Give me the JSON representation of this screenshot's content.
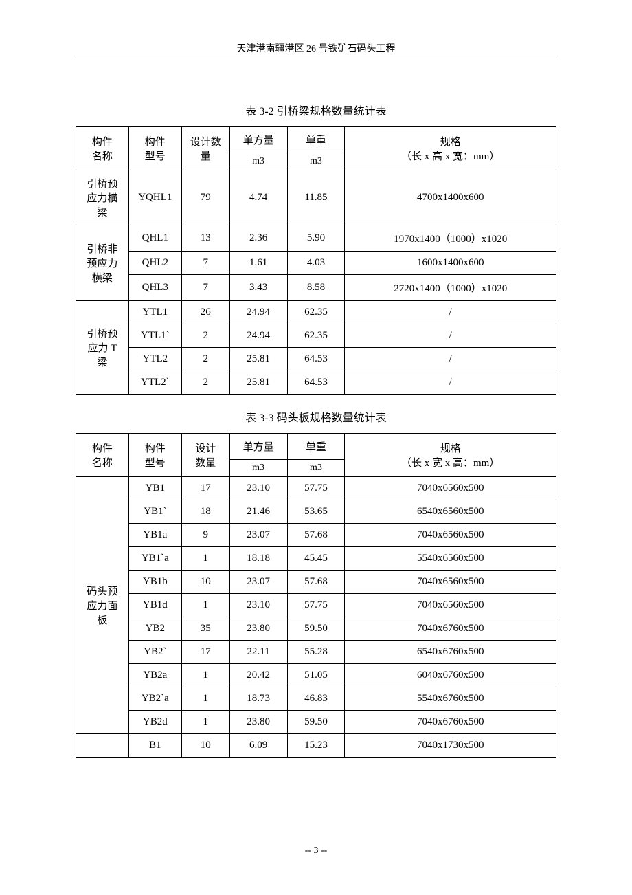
{
  "page": {
    "header_title": "天津港南疆港区 26 号铁矿石码头工程",
    "footer": "-- 3 --"
  },
  "table1": {
    "caption": "表 3-2 引桥梁规格数量统计表",
    "headers": {
      "name": "构件\n名称",
      "model": "构件\n型号",
      "qty": "设计数\n量",
      "vol": "单方量",
      "wt": "单重",
      "spec": "规格\n（长 x 高 x 宽：mm）",
      "vol_unit": "m3",
      "wt_unit": "m3"
    },
    "groups": [
      {
        "name": "引桥预\n应力横\n梁",
        "rows": [
          {
            "model": "YQHL1",
            "qty": "79",
            "vol": "4.74",
            "wt": "11.85",
            "spec": "4700x1400x600"
          }
        ]
      },
      {
        "name": "引桥非\n预应力\n横梁",
        "rows": [
          {
            "model": "QHL1",
            "qty": "13",
            "vol": "2.36",
            "wt": "5.90",
            "spec": "1970x1400（1000）x1020"
          },
          {
            "model": "QHL2",
            "qty": "7",
            "vol": "1.61",
            "wt": "4.03",
            "spec": "1600x1400x600"
          },
          {
            "model": "QHL3",
            "qty": "7",
            "vol": "3.43",
            "wt": "8.58",
            "spec": "2720x1400（1000）x1020"
          }
        ]
      },
      {
        "name": "引桥预\n应力 T\n梁",
        "rows": [
          {
            "model": "YTL1",
            "qty": "26",
            "vol": "24.94",
            "wt": "62.35",
            "spec": "/"
          },
          {
            "model": "YTL1`",
            "qty": "2",
            "vol": "24.94",
            "wt": "62.35",
            "spec": "/"
          },
          {
            "model": "YTL2",
            "qty": "2",
            "vol": "25.81",
            "wt": "64.53",
            "spec": "/"
          },
          {
            "model": "YTL2`",
            "qty": "2",
            "vol": "25.81",
            "wt": "64.53",
            "spec": "/"
          }
        ]
      }
    ]
  },
  "table2": {
    "caption": "表 3-3  码头板规格数量统计表",
    "headers": {
      "name": "构件\n名称",
      "model": "构件\n型号",
      "qty": "设计\n数量",
      "vol": "单方量",
      "wt": "单重",
      "spec": "规格\n（长 x 宽 x 高：mm）",
      "vol_unit": "m3",
      "wt_unit": "m3"
    },
    "groups": [
      {
        "name": "码头预\n应力面\n板",
        "rows": [
          {
            "model": "YB1",
            "qty": "17",
            "vol": "23.10",
            "wt": "57.75",
            "spec": "7040x6560x500"
          },
          {
            "model": "YB1`",
            "qty": "18",
            "vol": "21.46",
            "wt": "53.65",
            "spec": "6540x6560x500"
          },
          {
            "model": "YB1a",
            "qty": "9",
            "vol": "23.07",
            "wt": "57.68",
            "spec": "7040x6560x500"
          },
          {
            "model": "YB1`a",
            "qty": "1",
            "vol": "18.18",
            "wt": "45.45",
            "spec": "5540x6560x500"
          },
          {
            "model": "YB1b",
            "qty": "10",
            "vol": "23.07",
            "wt": "57.68",
            "spec": "7040x6560x500"
          },
          {
            "model": "YB1d",
            "qty": "1",
            "vol": "23.10",
            "wt": "57.75",
            "spec": "7040x6560x500"
          },
          {
            "model": "YB2",
            "qty": "35",
            "vol": "23.80",
            "wt": "59.50",
            "spec": "7040x6760x500"
          },
          {
            "model": "YB2`",
            "qty": "17",
            "vol": "22.11",
            "wt": "55.28",
            "spec": "6540x6760x500"
          },
          {
            "model": "YB2a",
            "qty": "1",
            "vol": "20.42",
            "wt": "51.05",
            "spec": "6040x6760x500"
          },
          {
            "model": "YB2`a",
            "qty": "1",
            "vol": "18.73",
            "wt": "46.83",
            "spec": "5540x6760x500"
          },
          {
            "model": "YB2d",
            "qty": "1",
            "vol": "23.80",
            "wt": "59.50",
            "spec": "7040x6760x500"
          }
        ]
      },
      {
        "name": "",
        "rows": [
          {
            "model": "B1",
            "qty": "10",
            "vol": "6.09",
            "wt": "15.23",
            "spec": "7040x1730x500"
          }
        ]
      }
    ]
  }
}
